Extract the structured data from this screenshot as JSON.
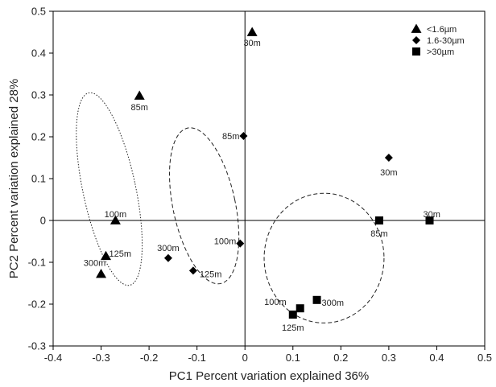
{
  "chart_data": {
    "type": "scatter",
    "title": "",
    "xlabel": "PC1 Percent variation explained 36%",
    "ylabel": "PC2 Percent variation explained 28%",
    "xlim": [
      -0.4,
      0.5
    ],
    "ylim": [
      -0.3,
      0.5
    ],
    "xticks": [
      "-0.4",
      "-0.3",
      "-0.2",
      "-0.1",
      "0",
      "0.1",
      "0.2",
      "0.3",
      "0.4",
      "0.5"
    ],
    "yticks": [
      "-0.3",
      "-0.2",
      "-0.1",
      "0",
      "0.1",
      "0.2",
      "0.3",
      "0.4",
      "0.5"
    ],
    "grid": false,
    "legend_position": "top-right",
    "series": [
      {
        "name": "<1.6µm",
        "marker": "triangle",
        "points": [
          {
            "x": 0.015,
            "y": 0.45,
            "label": "30m"
          },
          {
            "x": -0.22,
            "y": 0.298,
            "label": "85m"
          },
          {
            "x": -0.27,
            "y": 0.0,
            "label": "100m"
          },
          {
            "x": -0.29,
            "y": -0.085,
            "label": "125m"
          },
          {
            "x": -0.3,
            "y": -0.128,
            "label": "300m"
          }
        ]
      },
      {
        "name": "1.6-30µm",
        "marker": "diamond",
        "points": [
          {
            "x": 0.3,
            "y": 0.15,
            "label": "30m"
          },
          {
            "x": -0.003,
            "y": 0.202,
            "label": "85m"
          },
          {
            "x": -0.01,
            "y": -0.055,
            "label": "100m"
          },
          {
            "x": -0.108,
            "y": -0.12,
            "label": "125m"
          },
          {
            "x": -0.16,
            "y": -0.09,
            "label": "300m"
          }
        ]
      },
      {
        "name": ">30µm",
        "marker": "square",
        "points": [
          {
            "x": 0.385,
            "y": 0.0,
            "label": "30m"
          },
          {
            "x": 0.28,
            "y": 0.0,
            "label": "85m"
          },
          {
            "x": 0.115,
            "y": -0.21,
            "label": "100m"
          },
          {
            "x": 0.1,
            "y": -0.225,
            "label": "125m"
          },
          {
            "x": 0.15,
            "y": -0.19,
            "label": "300m"
          }
        ]
      }
    ],
    "ellipses": [
      {
        "group": "<1.6µm",
        "style": "dotted",
        "cx": -0.283,
        "cy": 0.075,
        "rx": 0.055,
        "ry": 0.235,
        "angle": -12
      },
      {
        "group": "1.6-30µm",
        "style": "dashed",
        "cx": -0.085,
        "cy": 0.035,
        "rx": 0.065,
        "ry": 0.19,
        "angle": -12
      },
      {
        "group": ">30µm",
        "style": "dashed",
        "cx": 0.165,
        "cy": -0.09,
        "rx": 0.125,
        "ry": 0.155,
        "angle": 0
      }
    ]
  }
}
